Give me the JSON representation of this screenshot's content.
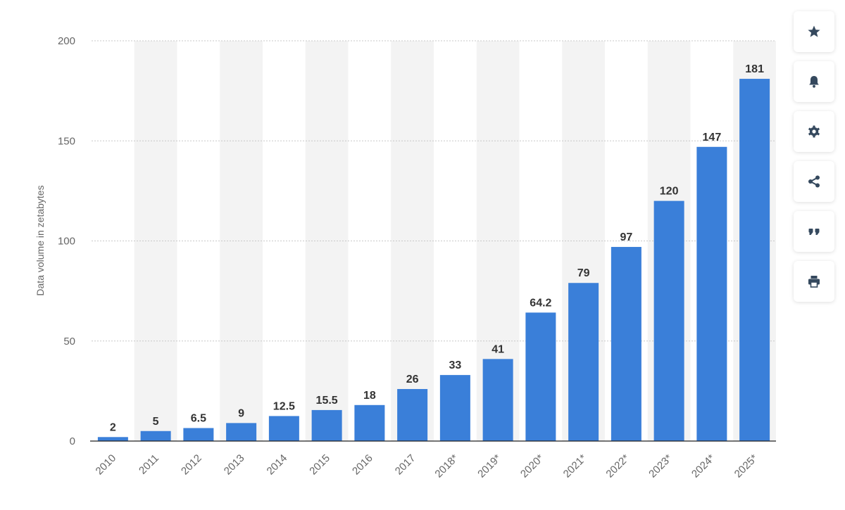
{
  "chart_data": {
    "type": "bar",
    "title": "",
    "xlabel": "",
    "ylabel": "Data volume in zetabytes",
    "ylim": [
      0,
      200
    ],
    "yticks": [
      "0",
      "50",
      "100",
      "150",
      "200"
    ],
    "grid": true,
    "categories": [
      "2010",
      "2011",
      "2012",
      "2013",
      "2014",
      "2015",
      "2016",
      "2017",
      "2018*",
      "2019*",
      "2020*",
      "2021*",
      "2022*",
      "2023*",
      "2024*",
      "2025*"
    ],
    "values": [
      2,
      5,
      6.5,
      9,
      12.5,
      15.5,
      18,
      26,
      33,
      41,
      64.2,
      79,
      97,
      120,
      147,
      181
    ],
    "value_labels": [
      "2",
      "5",
      "6.5",
      "9",
      "12.5",
      "15.5",
      "18",
      "26",
      "33",
      "41",
      "64.2",
      "79",
      "97",
      "120",
      "147",
      "181"
    ],
    "bar_color": "#3a7fd9",
    "alt_column_color": "#f3f3f3",
    "grid_color": "#c8c8c8"
  },
  "toolbar": {
    "icon_color": "#35495e",
    "buttons": [
      {
        "name": "favorite",
        "icon": "star-icon"
      },
      {
        "name": "notification",
        "icon": "bell-icon"
      },
      {
        "name": "settings",
        "icon": "gear-icon"
      },
      {
        "name": "share",
        "icon": "share-icon"
      },
      {
        "name": "cite",
        "icon": "quote-icon"
      },
      {
        "name": "print",
        "icon": "printer-icon"
      }
    ]
  }
}
